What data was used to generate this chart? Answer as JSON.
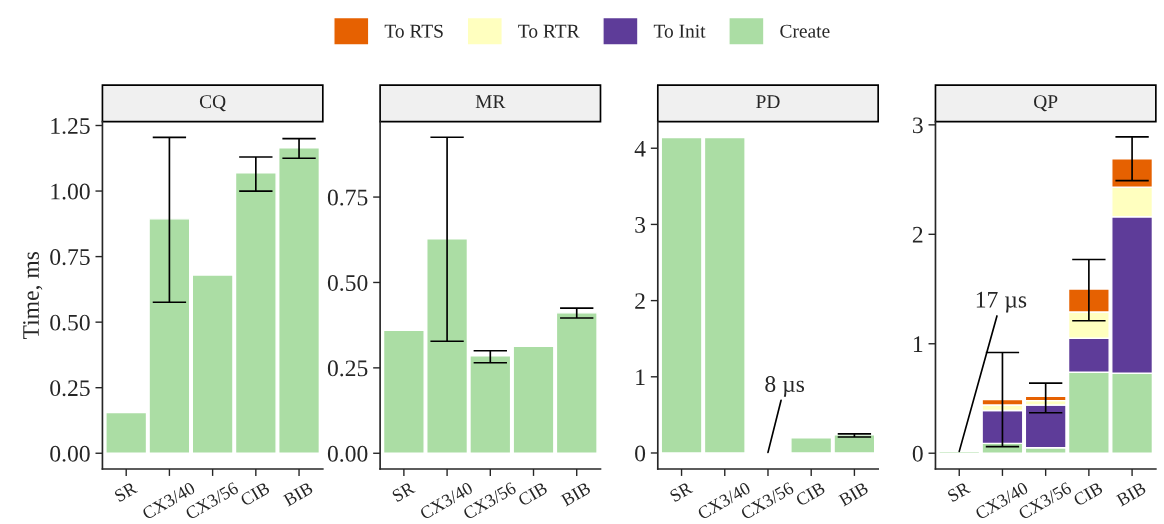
{
  "chart_data": [
    {
      "type": "bar",
      "title": "CQ",
      "ylabel": "Time, ms",
      "stacked": true,
      "grid": false,
      "categories": [
        "SR",
        "CX3/40",
        "CX3/56",
        "CIB",
        "BIB"
      ],
      "series": [
        {
          "color": "#abdda4",
          "values": [
            0.155,
            0.894,
            0.68,
            1.07,
            1.165
          ],
          "errors": [
            null,
            [
              0.576,
              1.205
            ],
            null,
            [
              1.0,
              1.13
            ],
            [
              1.125,
              1.2
            ]
          ]
        }
      ],
      "ylim": [
        -0.06,
        1.265
      ],
      "yticks": [
        {
          "value": 0,
          "label": "0.00"
        },
        {
          "value": 0.25,
          "label": "0.25"
        },
        {
          "value": 0.5,
          "label": "0.50"
        },
        {
          "value": 0.75,
          "label": "0.75"
        },
        {
          "value": 1.0,
          "label": "1.00"
        },
        {
          "value": 1.25,
          "label": "1.25"
        }
      ]
    },
    {
      "type": "bar",
      "title": "MR",
      "stacked": true,
      "grid": false,
      "categories": [
        "SR",
        "CX3/40",
        "CX3/56",
        "CIB",
        "BIB"
      ],
      "series": [
        {
          "color": "#abdda4",
          "values": [
            0.36,
            0.628,
            0.285,
            0.313,
            0.411
          ],
          "errors": [
            null,
            [
              0.328,
              0.925
            ],
            [
              0.265,
              0.3
            ],
            null,
            [
              0.396,
              0.425
            ]
          ]
        }
      ],
      "ylim": [
        -0.046,
        0.971
      ],
      "yticks": [
        {
          "value": 0,
          "label": "0.00"
        },
        {
          "value": 0.25,
          "label": "0.25"
        },
        {
          "value": 0.5,
          "label": "0.50"
        },
        {
          "value": 0.75,
          "label": "0.75"
        }
      ]
    },
    {
      "type": "bar",
      "title": "PD",
      "stacked": true,
      "grid": false,
      "categories": [
        "SR",
        "CX3/40",
        "CX3/56",
        "CIB",
        "BIB"
      ],
      "series": [
        {
          "color": "#abdda4",
          "values": [
            4.14,
            4.14,
            0.008,
            0.2,
            0.24
          ],
          "errors": [
            null,
            null,
            null,
            null,
            [
              0.21,
              0.25
            ]
          ]
        }
      ],
      "annotations": [
        {
          "text": "8 µs",
          "x": "CX3/56",
          "y": 0.008
        }
      ],
      "ylim": [
        -0.21,
        4.35
      ],
      "yticks": [
        0,
        1,
        2,
        3,
        4
      ]
    },
    {
      "type": "bar",
      "title": "QP",
      "stacked": true,
      "grid": false,
      "legend": "top",
      "categories": [
        "SR",
        "CX3/40",
        "CX3/56",
        "CIB",
        "BIB"
      ],
      "series": [
        {
          "name": "Create",
          "color": "#abdda4",
          "values": [
            0.017,
            0.09,
            0.05,
            0.74,
            0.73
          ]
        },
        {
          "name": "To Init",
          "color": "#5e3c99",
          "values": [
            null,
            0.3,
            0.39,
            0.31,
            1.43
          ]
        },
        {
          "name": "To RTR",
          "color": "#ffffbf",
          "values": [
            null,
            0.05,
            0.04,
            0.24,
            0.27
          ]
        },
        {
          "name": "To RTS",
          "color": "#e66101",
          "values": [
            null,
            0.05,
            0.04,
            0.21,
            0.26
          ],
          "errors": [
            null,
            [
              0.06,
              0.92
            ],
            [
              0.37,
              0.64
            ],
            [
              1.21,
              1.77
            ],
            [
              2.49,
              2.89
            ]
          ]
        }
      ],
      "annotations": [
        {
          "text": "17 µs",
          "x": "SR",
          "y": 0.017
        }
      ],
      "ylim": [
        -0.144,
        3.03
      ],
      "yticks": [
        0,
        1,
        2,
        3
      ]
    }
  ]
}
